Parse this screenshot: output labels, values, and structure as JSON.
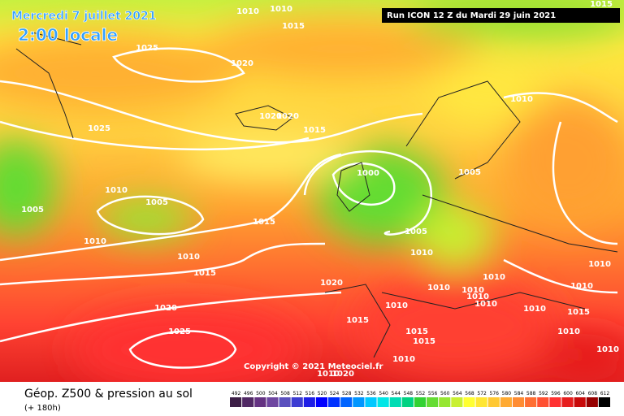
{
  "header": {
    "date": "Mercredi 7 juillet 2021",
    "time": "2:00 locale",
    "run": "Run ICON 12 Z du Mardi 29 juin 2021"
  },
  "copyright": "Copyright © 2021 Meteociel.fr",
  "footer": {
    "title": "Géop. Z500 & pression au sol",
    "lead": "(+ 180h)"
  },
  "isobar_labels": [
    1010,
    1010,
    1015,
    1025,
    1020,
    1025,
    1020,
    1020,
    1015,
    1010,
    1000,
    1005,
    1010,
    1005,
    1005,
    1010,
    1015,
    1010,
    1005,
    1010,
    1015,
    1020,
    1010,
    1010,
    1010,
    1010,
    1010,
    1010,
    1010,
    1010,
    1015,
    1010,
    1010,
    1010,
    1015,
    1020,
    1015,
    1025,
    1015,
    1015,
    1010,
    1010,
    1020
  ],
  "scale": {
    "values": [
      492,
      496,
      500,
      504,
      508,
      512,
      516,
      520,
      524,
      528,
      532,
      536,
      540,
      544,
      548,
      552,
      556,
      560,
      564,
      568,
      572,
      576,
      580,
      584,
      588,
      592,
      596,
      600,
      604,
      608,
      612
    ],
    "colors": [
      "#3c1e46",
      "#502864",
      "#643282",
      "#6e46a0",
      "#5a50be",
      "#3c3cd2",
      "#1e1ee6",
      "#0000ff",
      "#0032ff",
      "#0064ff",
      "#0096ff",
      "#00c8ff",
      "#00e6e6",
      "#00dcb4",
      "#00d282",
      "#32d232",
      "#64dc32",
      "#96e632",
      "#c8f032",
      "#ffff32",
      "#ffe632",
      "#ffc832",
      "#ffaa32",
      "#ff8c32",
      "#ff6e32",
      "#ff5032",
      "#ff3232",
      "#e61e1e",
      "#c80a0a",
      "#960000",
      "#000000"
    ]
  }
}
